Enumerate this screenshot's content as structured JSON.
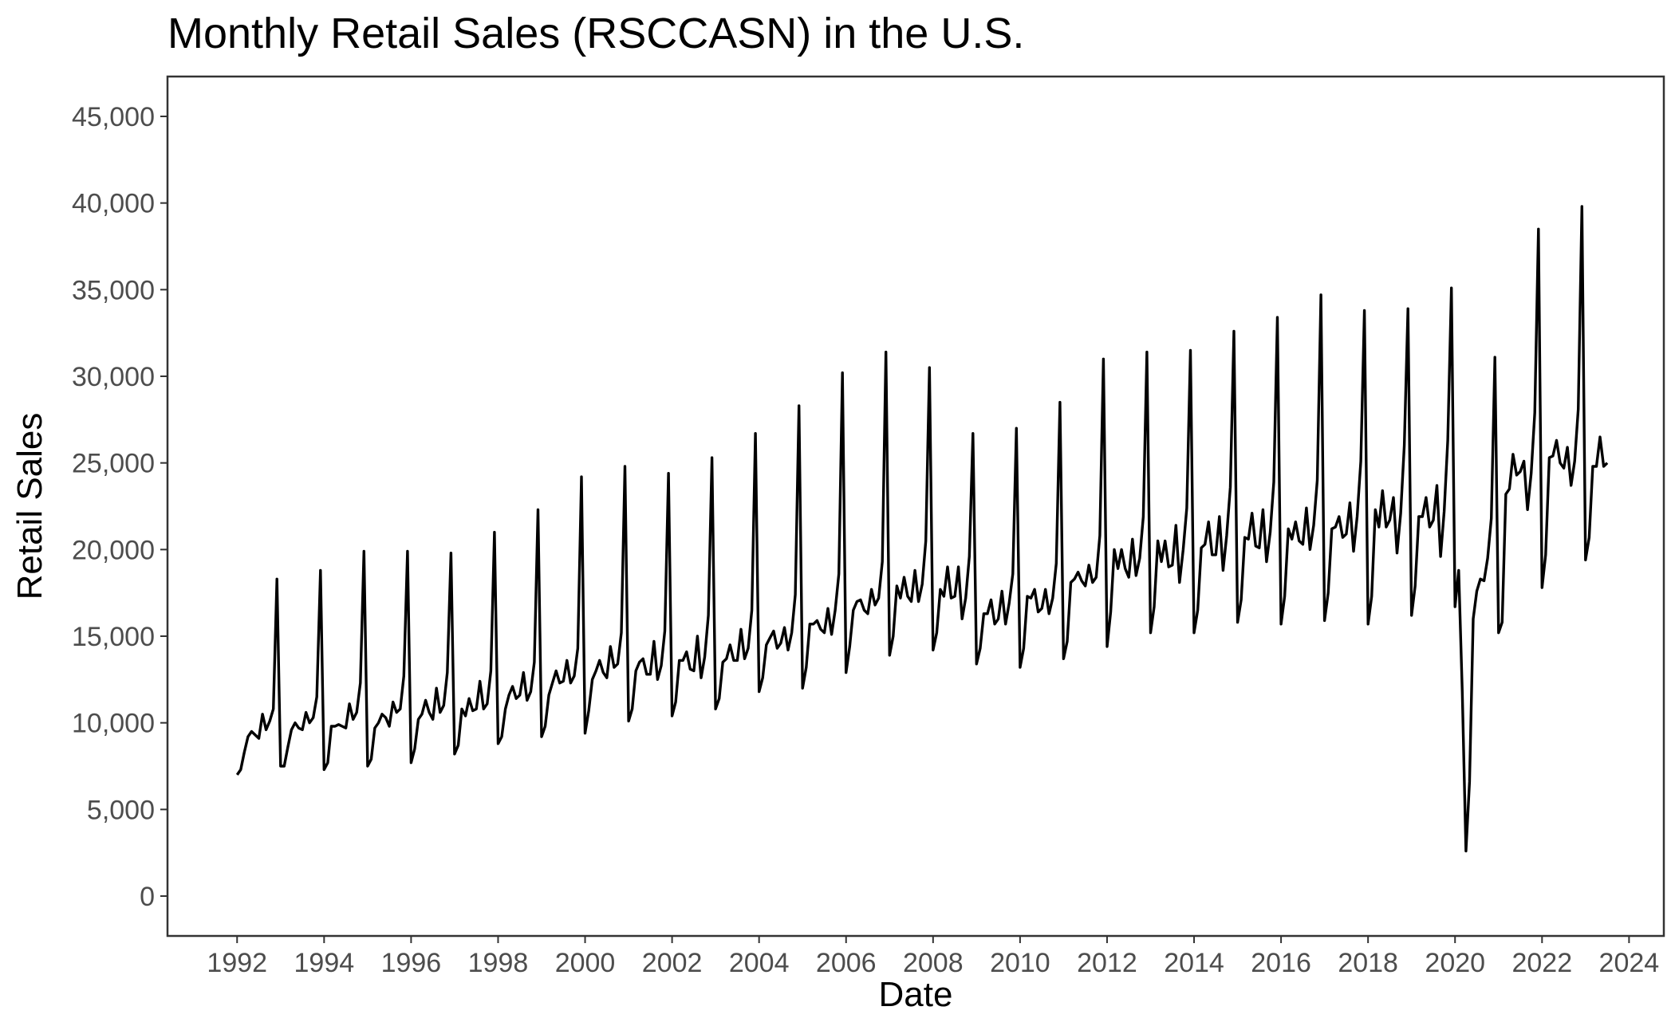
{
  "chart_data": {
    "type": "line",
    "title": "Monthly Retail Sales (RSCCASN) in the U.S.",
    "xlabel": "Date",
    "ylabel": "Retail Sales",
    "xlim": [
      1990.4,
      2024.8
    ],
    "ylim": [
      -2300,
      47300
    ],
    "grid": false,
    "legend": "none",
    "line_color": "#000000",
    "x_ticks": [
      "1992",
      "1994",
      "1996",
      "1998",
      "2000",
      "2002",
      "2004",
      "2006",
      "2008",
      "2010",
      "2012",
      "2014",
      "2016",
      "2018",
      "2020",
      "2022",
      "2024"
    ],
    "y_ticks": [
      0,
      5000,
      10000,
      15000,
      20000,
      25000,
      30000,
      35000,
      40000,
      45000
    ],
    "y_tick_labels": [
      "0",
      "5,000",
      "10,000",
      "15,000",
      "20,000",
      "25,000",
      "30,000",
      "35,000",
      "40,000",
      "45,000"
    ],
    "x_start": "1992-01",
    "x_frequency": "monthly",
    "series": [
      {
        "values": [
          7000,
          7300,
          8300,
          9200,
          9500,
          9300,
          9100,
          10500,
          9600,
          10100,
          10800,
          18300,
          7500,
          7500,
          8600,
          9600,
          10000,
          9700,
          9600,
          10600,
          10000,
          10300,
          11500,
          18800,
          7300,
          7700,
          9800,
          9800,
          9900,
          9800,
          9700,
          11100,
          10200,
          10600,
          12300,
          19900,
          7500,
          7900,
          9700,
          10000,
          10500,
          10300,
          9800,
          11200,
          10600,
          10800,
          12700,
          19900,
          7700,
          8500,
          10200,
          10500,
          11300,
          10600,
          10200,
          12000,
          10600,
          11000,
          12900,
          19800,
          8200,
          8700,
          10800,
          10400,
          11400,
          10700,
          10800,
          12400,
          10800,
          11100,
          13000,
          21000,
          8800,
          9200,
          10800,
          11600,
          12100,
          11400,
          11600,
          12900,
          11300,
          11800,
          13500,
          22300,
          9200,
          9800,
          11600,
          12300,
          13000,
          12300,
          12400,
          13600,
          12300,
          12700,
          14300,
          24200,
          9400,
          10700,
          12500,
          13000,
          13600,
          12900,
          12600,
          14400,
          13200,
          13400,
          15200,
          24800,
          10100,
          10800,
          13000,
          13500,
          13700,
          12800,
          12800,
          14700,
          12500,
          13300,
          15300,
          24400,
          10400,
          11200,
          13600,
          13600,
          14100,
          13100,
          13000,
          15000,
          12600,
          13800,
          16200,
          25300,
          10800,
          11400,
          13500,
          13700,
          14500,
          13600,
          13600,
          15400,
          13700,
          14300,
          16500,
          26700,
          11800,
          12600,
          14500,
          14900,
          15300,
          14300,
          14600,
          15500,
          14200,
          15200,
          17400,
          28300,
          12000,
          13200,
          15700,
          15700,
          15900,
          15400,
          15200,
          16600,
          15100,
          16500,
          18600,
          30200,
          12900,
          14400,
          16500,
          17000,
          17100,
          16500,
          16300,
          17700,
          16800,
          17200,
          19300,
          31400,
          13900,
          15000,
          17900,
          17200,
          18400,
          17300,
          17000,
          18800,
          17000,
          18000,
          20500,
          30500,
          14200,
          15200,
          17700,
          17300,
          19000,
          17200,
          17300,
          19000,
          16000,
          17200,
          19600,
          26700,
          13400,
          14300,
          16300,
          16300,
          17100,
          15700,
          16000,
          17600,
          15700,
          16900,
          18600,
          27000,
          13200,
          14300,
          17300,
          17200,
          17700,
          16400,
          16600,
          17700,
          16300,
          17200,
          19200,
          28500,
          13700,
          14700,
          18100,
          18300,
          18700,
          18200,
          17900,
          19100,
          18100,
          18400,
          20800,
          31000,
          14400,
          16400,
          20000,
          18900,
          20000,
          18900,
          18400,
          20600,
          18500,
          19500,
          21900,
          31400,
          15200,
          16700,
          20500,
          19300,
          20500,
          19000,
          19100,
          21400,
          18100,
          20000,
          22400,
          31500,
          15200,
          16500,
          20100,
          20300,
          21600,
          19700,
          19700,
          21900,
          18800,
          20800,
          23600,
          32600,
          15800,
          17100,
          20700,
          20600,
          22100,
          20200,
          20100,
          22300,
          19300,
          21000,
          23900,
          33400,
          15700,
          17300,
          21200,
          20600,
          21600,
          20500,
          20300,
          22400,
          20000,
          21400,
          24000,
          34700,
          15900,
          17500,
          21200,
          21300,
          21900,
          20700,
          20900,
          22700,
          19900,
          21900,
          25100,
          33800,
          15700,
          17300,
          22300,
          21300,
          23400,
          21300,
          21700,
          23000,
          19800,
          22100,
          26000,
          33900,
          16200,
          17900,
          21900,
          21900,
          23000,
          21300,
          21700,
          23700,
          19600,
          22200,
          26300,
          35100,
          16700,
          18800,
          11800,
          2600,
          6600,
          16000,
          17600,
          18300,
          18200,
          19500,
          21800,
          31100,
          15200,
          15800,
          23200,
          23500,
          25500,
          24300,
          24500,
          25100,
          22300,
          24400,
          27900,
          38500,
          17800,
          19700,
          25300,
          25400,
          26300,
          25000,
          24700,
          25900,
          23700,
          25100,
          28100,
          39800,
          19400,
          20700,
          24800,
          24800,
          26500,
          24800,
          25000
        ]
      }
    ]
  }
}
